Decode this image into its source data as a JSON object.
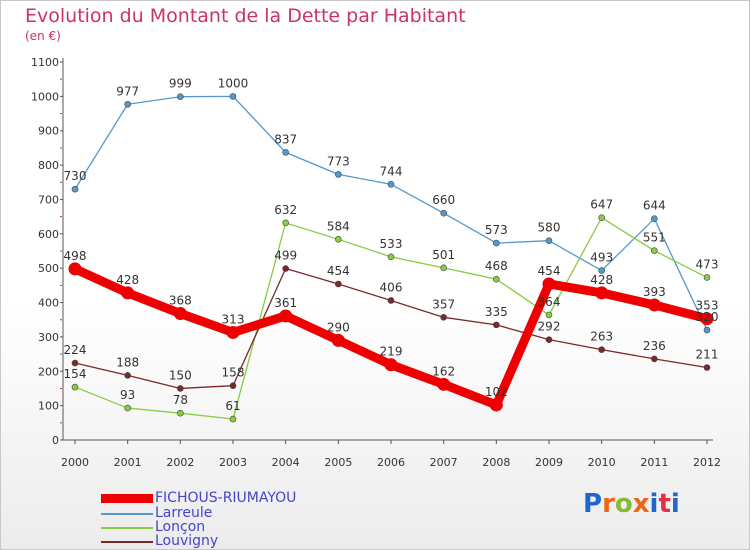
{
  "title": "Evolution du Montant de la Dette par Habitant",
  "subtitle": "(en €)",
  "logo": {
    "text": "Proxiti",
    "colors": [
      "#2266cc",
      "#ee6611",
      "#88bb33",
      "#ee6611",
      "#2266cc",
      "#dd3344",
      "#2266cc"
    ]
  },
  "chart_data": {
    "type": "line",
    "x": [
      "2000",
      "2001",
      "2002",
      "2003",
      "2004",
      "2005",
      "2006",
      "2007",
      "2008",
      "2009",
      "2010",
      "2011",
      "2012"
    ],
    "ylim": [
      0,
      1100
    ],
    "yticks": [
      0,
      100,
      200,
      300,
      400,
      500,
      600,
      700,
      800,
      900,
      1000,
      1100
    ],
    "grid": false,
    "legend_position": "bottom-left",
    "series": [
      {
        "name": "FICHOUS-RIUMAYOU",
        "color": "#ee0000",
        "values": [
          498,
          428,
          368,
          313,
          361,
          290,
          219,
          162,
          102,
          454,
          428,
          393,
          353
        ],
        "labels": [
          "498",
          "428",
          "368",
          "313",
          "361",
          "290",
          "219",
          "162",
          "102",
          "454",
          "428",
          "393",
          "353"
        ]
      },
      {
        "name": "Larreule",
        "color": "#5599cc",
        "values": [
          730,
          977,
          999,
          1000,
          837,
          773,
          744,
          660,
          573,
          580,
          493,
          644,
          320
        ],
        "labels": [
          "730",
          "977",
          "999",
          "1000",
          "837",
          "773",
          "744",
          "660",
          "573",
          "580",
          "493",
          "644",
          "320"
        ]
      },
      {
        "name": "Lonçon",
        "color": "#88cc44",
        "values": [
          154,
          93,
          78,
          61,
          632,
          584,
          533,
          501,
          468,
          364,
          647,
          551,
          473
        ],
        "labels": [
          "154",
          "93",
          "78",
          "61",
          "632",
          "584",
          "533",
          "501",
          "468",
          "364",
          "647",
          "551",
          "473"
        ]
      },
      {
        "name": "Louvigny",
        "color": "#7a2a2a",
        "values": [
          224,
          188,
          150,
          158,
          499,
          454,
          406,
          357,
          335,
          292,
          263,
          236,
          211
        ],
        "labels": [
          "224",
          "188",
          "150",
          "158",
          "499",
          "454",
          "406",
          "357",
          "335",
          "292",
          "263",
          "236",
          "211"
        ]
      }
    ]
  }
}
